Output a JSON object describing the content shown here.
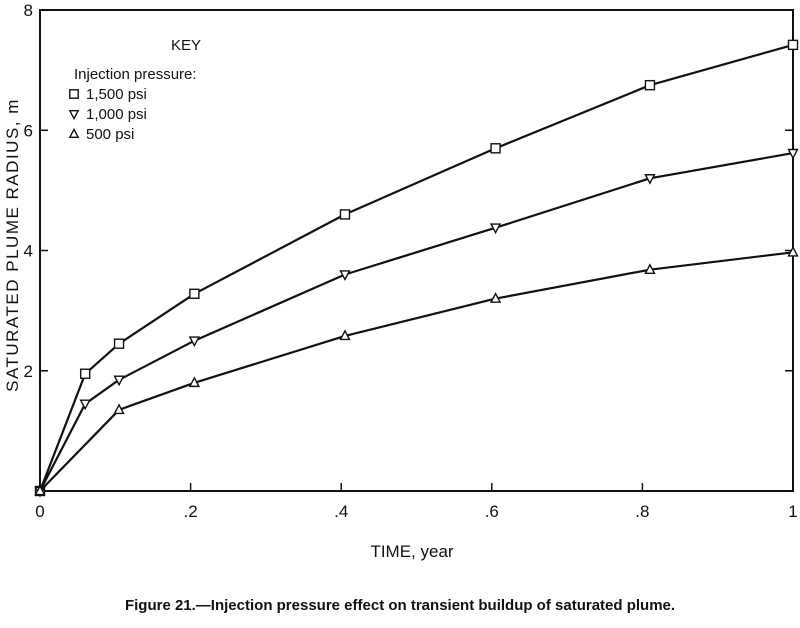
{
  "chart_data": {
    "type": "line",
    "xlabel": "TIME, year",
    "ylabel": "SATURATED PLUME RADIUS, m",
    "xlim": [
      0,
      1
    ],
    "ylim": [
      0,
      8
    ],
    "x_ticks": [
      {
        "value": 0,
        "label": "0"
      },
      {
        "value": 0.2,
        "label": ".2"
      },
      {
        "value": 0.4,
        "label": ".4"
      },
      {
        "value": 0.6,
        "label": ".6"
      },
      {
        "value": 0.8,
        "label": ".8"
      },
      {
        "value": 1,
        "label": "1"
      }
    ],
    "y_ticks": [
      {
        "value": 0,
        "label": ""
      },
      {
        "value": 2,
        "label": "2"
      },
      {
        "value": 4,
        "label": "4"
      },
      {
        "value": 6,
        "label": "6"
      },
      {
        "value": 8,
        "label": "8"
      }
    ],
    "key_title": "KEY",
    "legend_heading": "Injection pressure:",
    "series": [
      {
        "name": "1,500 psi",
        "marker": "square",
        "x": [
          0,
          0.06,
          0.105,
          0.205,
          0.405,
          0.605,
          0.81,
          1.0
        ],
        "values": [
          0,
          1.95,
          2.45,
          3.28,
          4.6,
          5.7,
          6.75,
          7.42
        ]
      },
      {
        "name": "1,000 psi",
        "marker": "triangle-down",
        "x": [
          0,
          0.06,
          0.105,
          0.205,
          0.405,
          0.605,
          0.81,
          1.0
        ],
        "values": [
          0,
          1.45,
          1.85,
          2.5,
          3.6,
          4.38,
          5.2,
          5.62
        ]
      },
      {
        "name": "500 psi",
        "marker": "triangle-up",
        "x": [
          0,
          0.105,
          0.205,
          0.405,
          0.605,
          0.81,
          1.0
        ],
        "values": [
          0,
          1.35,
          1.8,
          2.58,
          3.2,
          3.68,
          3.97
        ]
      }
    ]
  },
  "caption": "Figure 21.—Injection pressure effect on transient buildup of saturated plume."
}
